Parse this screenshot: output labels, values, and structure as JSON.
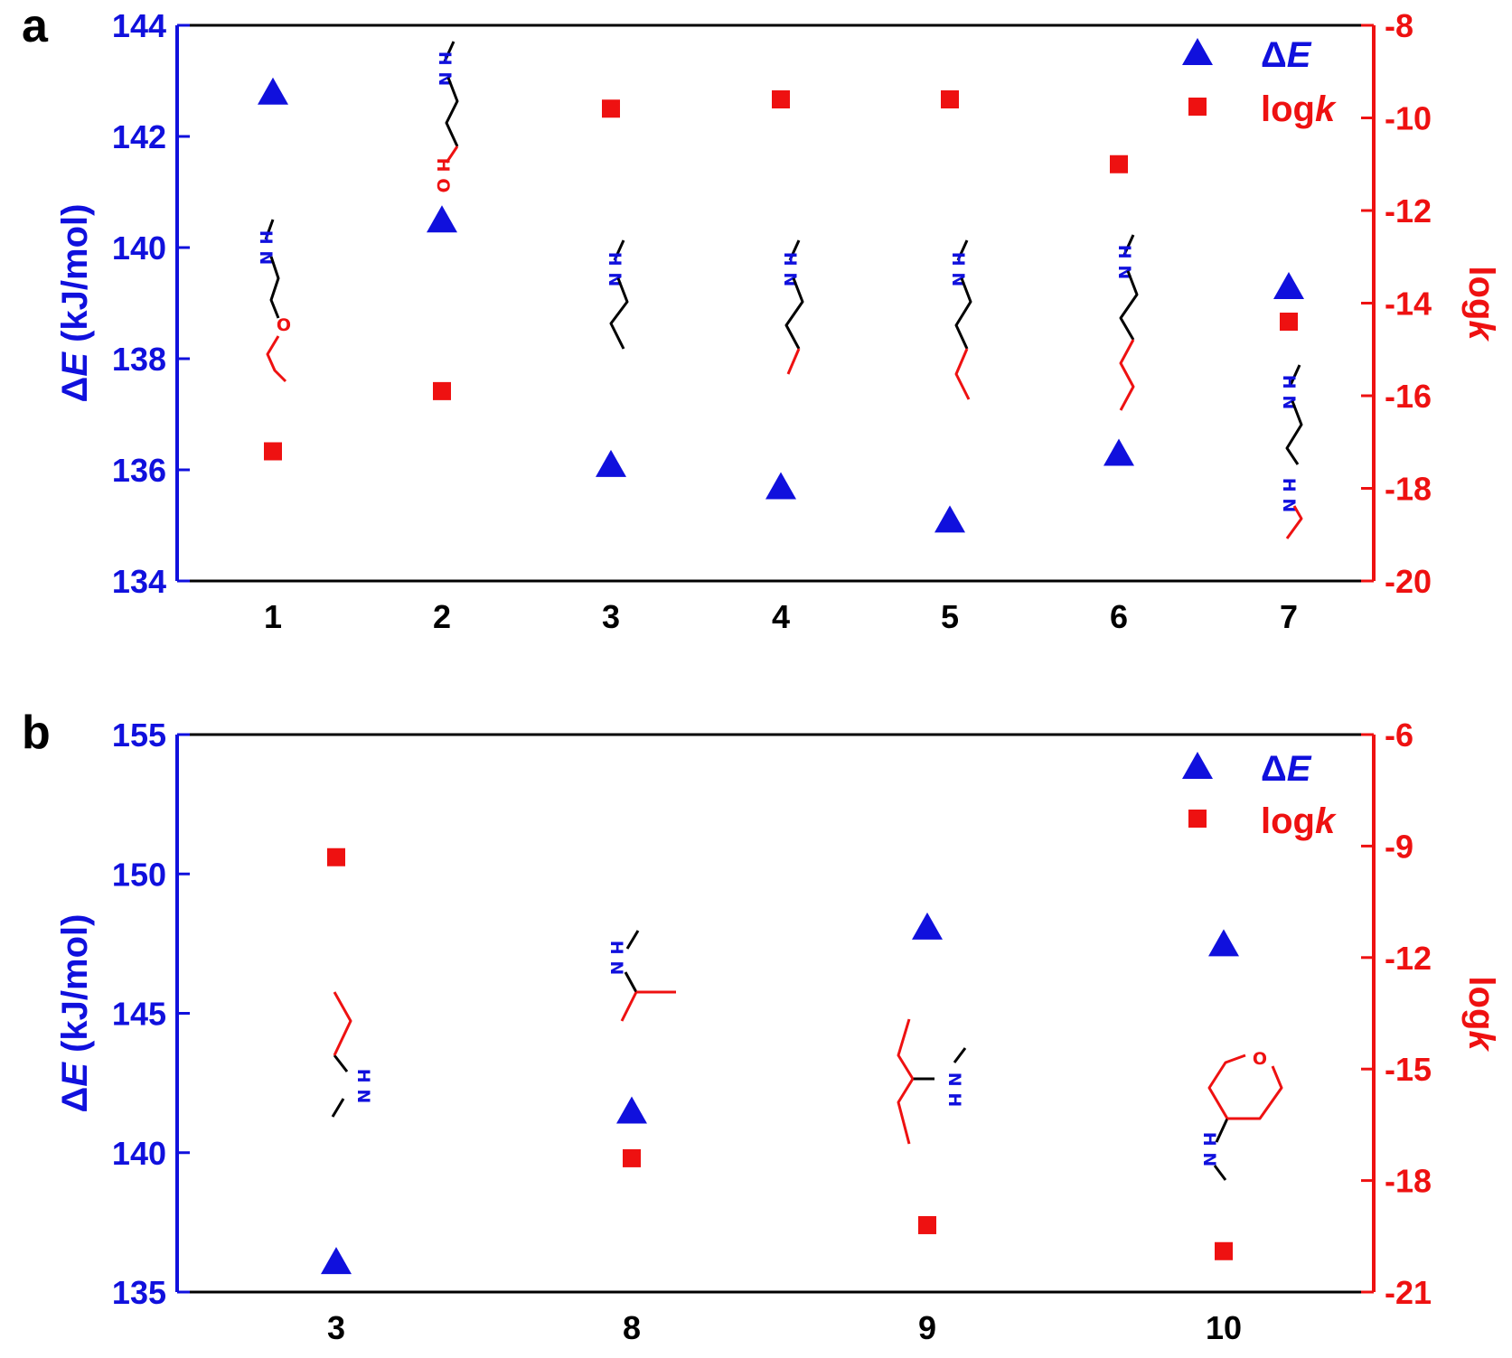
{
  "colors": {
    "delta_e": "#1010dd",
    "logk": "#ee1111",
    "axis": "#000000"
  },
  "chart_data": [
    {
      "type": "scatter",
      "panel_label": "a",
      "categories": [
        "1",
        "2",
        "3",
        "4",
        "5",
        "6",
        "7"
      ],
      "y_left": {
        "label_prefix": "Δ",
        "label_italic": "E",
        "label_suffix": " (kJ/mol)",
        "ylim": [
          134,
          144
        ],
        "ticks": [
          134,
          136,
          138,
          140,
          142,
          144
        ]
      },
      "y_right": {
        "label_prefix": "log",
        "label_italic": "k",
        "ylim": [
          -20,
          -8
        ],
        "ticks": [
          -20,
          -18,
          -16,
          -14,
          -12,
          -10,
          -8
        ]
      },
      "series": [
        {
          "name_prefix": "Δ",
          "name_italic": "E",
          "axis": "left",
          "marker": "triangle",
          "values": [
            142.8,
            140.5,
            136.1,
            135.7,
            135.1,
            136.3,
            139.3
          ]
        },
        {
          "name_prefix": "log",
          "name_italic": "k",
          "axis": "right",
          "marker": "square",
          "values": [
            -17.2,
            -15.9,
            -9.8,
            -9.6,
            -9.6,
            -11.0,
            -14.4
          ]
        }
      ],
      "grid": false,
      "legend_position": "top-right"
    },
    {
      "type": "scatter",
      "panel_label": "b",
      "categories": [
        "3",
        "8",
        "9",
        "10"
      ],
      "y_left": {
        "label_prefix": "Δ",
        "label_italic": "E",
        "label_suffix": " (kJ/mol)",
        "ylim": [
          135,
          155
        ],
        "ticks": [
          135,
          140,
          145,
          150,
          155
        ]
      },
      "y_right": {
        "label_prefix": "log",
        "label_italic": "k",
        "ylim": [
          -21,
          -6
        ],
        "ticks": [
          -21,
          -18,
          -15,
          -12,
          -9,
          -6
        ]
      },
      "series": [
        {
          "name_prefix": "Δ",
          "name_italic": "E",
          "axis": "left",
          "marker": "triangle",
          "values": [
            136.1,
            141.5,
            148.1,
            147.5
          ]
        },
        {
          "name_prefix": "log",
          "name_italic": "k",
          "axis": "right",
          "marker": "square",
          "values": [
            -9.3,
            -17.4,
            -19.2,
            -19.9
          ]
        }
      ],
      "grid": false,
      "legend_position": "top-right"
    }
  ],
  "structures": {
    "a": [
      {
        "bonds": [
          [
            -20,
            0,
            0,
            -12
          ],
          [
            -20,
            0,
            0,
            6
          ]
        ],
        "label": "H N",
        "rotate": 90
      },
      {
        "label": "O",
        "label2": "H"
      }
    ],
    "labels": {
      "amine": "H N",
      "nh_rot": "N H",
      "ether_o": "O",
      "hydroxyl": "H O"
    }
  }
}
